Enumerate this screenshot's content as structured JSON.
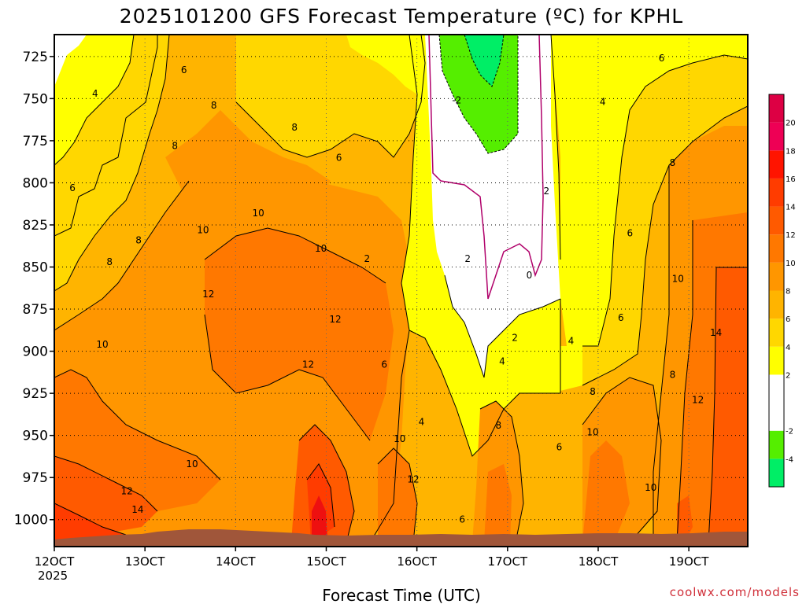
{
  "chart_data": {
    "type": "heatmap",
    "title": "2025101200 GFS Forecast Temperature (ºC) for KPHL",
    "xlabel": "Forecast Time (UTC)",
    "ylabel": "",
    "x_ticks": [
      "12OCT",
      "13OCT",
      "14OCT",
      "15OCT",
      "16OCT",
      "17OCT",
      "18OCT",
      "19OCT"
    ],
    "x_year": "2025",
    "x_range_days": [
      12,
      19.65
    ],
    "y_ticks": [
      725,
      750,
      775,
      800,
      825,
      850,
      875,
      900,
      925,
      950,
      975,
      1000
    ],
    "y_range": [
      712,
      1016
    ],
    "y_scale": "pressure (inverted)",
    "grid": "dotted",
    "colorbar": {
      "position": "right",
      "levels": [
        -6,
        -4,
        -2,
        0,
        2,
        4,
        6,
        8,
        10,
        12,
        14,
        16,
        18,
        20,
        22
      ],
      "labels": [
        "-4",
        "-2",
        "2",
        "4",
        "6",
        "8",
        "10",
        "12",
        "14",
        "16",
        "18",
        "20"
      ],
      "colors": [
        "#00ee66",
        "#55ee00",
        "#ffffff",
        "#ffffff",
        "#ffff00",
        "#ffd700",
        "#ffb400",
        "#ff9600",
        "#ff7800",
        "#ff5a00",
        "#ff3c00",
        "#ff1400",
        "#ee0055",
        "#dd0044"
      ]
    },
    "contour_labels": [
      {
        "value": "6",
        "time": 13.43,
        "p": 733
      },
      {
        "value": "4",
        "time": 12.45,
        "p": 747
      },
      {
        "value": "8",
        "time": 13.76,
        "p": 754
      },
      {
        "value": "8",
        "time": 13.33,
        "p": 778
      },
      {
        "value": "8",
        "time": 14.65,
        "p": 767
      },
      {
        "value": "6",
        "time": 15.14,
        "p": 785
      },
      {
        "value": "6",
        "time": 12.2,
        "p": 803
      },
      {
        "value": "10",
        "time": 14.25,
        "p": 818
      },
      {
        "value": "10",
        "time": 13.64,
        "p": 828
      },
      {
        "value": "8",
        "time": 12.93,
        "p": 834
      },
      {
        "value": "8",
        "time": 12.61,
        "p": 847
      },
      {
        "value": "10",
        "time": 14.94,
        "p": 839
      },
      {
        "value": "12",
        "time": 13.7,
        "p": 866
      },
      {
        "value": "12",
        "time": 15.1,
        "p": 881
      },
      {
        "value": "10",
        "time": 12.53,
        "p": 896
      },
      {
        "value": "12",
        "time": 14.8,
        "p": 908
      },
      {
        "value": "6",
        "time": 15.64,
        "p": 908
      },
      {
        "value": "2",
        "time": 15.45,
        "p": 845
      },
      {
        "value": "2",
        "time": 16.56,
        "p": 845
      },
      {
        "value": "-2",
        "time": 16.44,
        "p": 751
      },
      {
        "value": "0",
        "time": 17.24,
        "p": 855
      },
      {
        "value": "2",
        "time": 17.43,
        "p": 805
      },
      {
        "value": "2",
        "time": 17.08,
        "p": 892
      },
      {
        "value": "4",
        "time": 16.94,
        "p": 906
      },
      {
        "value": "4",
        "time": 17.7,
        "p": 894
      },
      {
        "value": "4",
        "time": 18.05,
        "p": 752
      },
      {
        "value": "4",
        "time": 16.05,
        "p": 942
      },
      {
        "value": "6",
        "time": 18.25,
        "p": 880
      },
      {
        "value": "6",
        "time": 18.35,
        "p": 830
      },
      {
        "value": "6",
        "time": 18.7,
        "p": 726
      },
      {
        "value": "8",
        "time": 18.82,
        "p": 788
      },
      {
        "value": "8",
        "time": 18.82,
        "p": 914
      },
      {
        "value": "8",
        "time": 16.9,
        "p": 944
      },
      {
        "value": "8",
        "time": 17.94,
        "p": 924
      },
      {
        "value": "10",
        "time": 18.88,
        "p": 857
      },
      {
        "value": "10",
        "time": 17.94,
        "p": 948
      },
      {
        "value": "10",
        "time": 15.81,
        "p": 952
      },
      {
        "value": "10",
        "time": 13.52,
        "p": 967
      },
      {
        "value": "10",
        "time": 18.58,
        "p": 981
      },
      {
        "value": "12",
        "time": 19.1,
        "p": 929
      },
      {
        "value": "12",
        "time": 12.8,
        "p": 983
      },
      {
        "value": "12",
        "time": 15.96,
        "p": 976
      },
      {
        "value": "14",
        "time": 12.92,
        "p": 994
      },
      {
        "value": "14",
        "time": 19.3,
        "p": 889
      },
      {
        "value": "6",
        "time": 16.5,
        "p": 1000
      },
      {
        "value": "6",
        "time": 17.57,
        "p": 957
      }
    ],
    "terrain_color": "#a0563a",
    "credit": "coolwx.com/models"
  }
}
